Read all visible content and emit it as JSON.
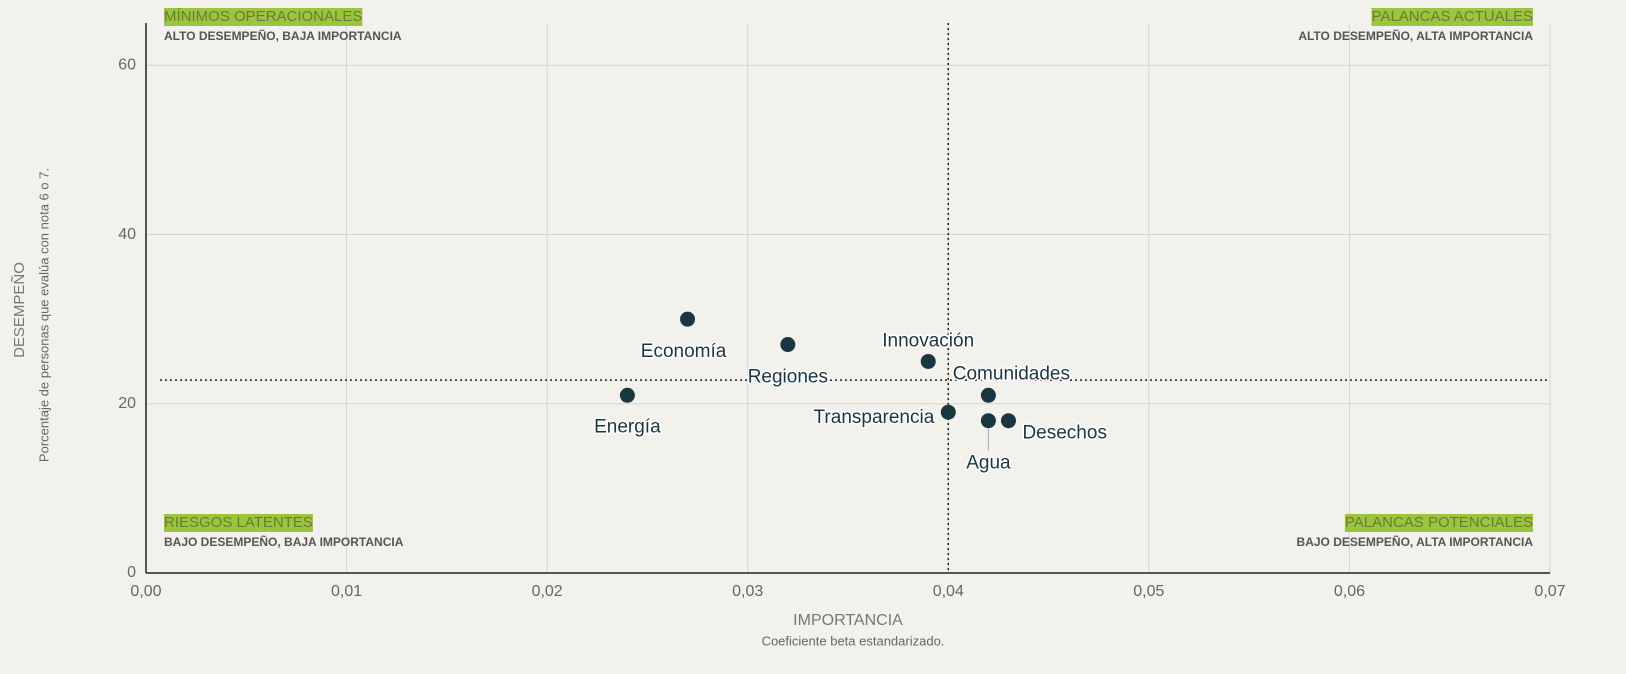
{
  "chart_data": {
    "type": "scatter",
    "x_label": "IMPORTANCIA",
    "x_sublabel": "Coeficiente beta estandarizado.",
    "y_label": "DESEMPEÑO",
    "y_sublabel": "Porcentaje de personas que evalúa con nota 6 o 7.",
    "labels": [
      "Economía",
      "Regiones",
      "Innovación",
      "Energía",
      "Comunidades",
      "Transparencia",
      "Agua",
      "Desechos"
    ],
    "x": [
      0.027,
      0.032,
      0.039,
      0.024,
      0.042,
      0.04,
      0.042,
      0.043
    ],
    "values": [
      30,
      27,
      25,
      21,
      21,
      19,
      18,
      18
    ],
    "color": "#1a3640",
    "xlim": [
      0,
      0.07
    ],
    "ylim": [
      0,
      65
    ],
    "xticks": [
      {
        "value": 0,
        "label": "0,00"
      },
      {
        "value": 0.01,
        "label": "0,01"
      },
      {
        "value": 0.02,
        "label": "0,02"
      },
      {
        "value": 0.03,
        "label": "0,03"
      },
      {
        "value": 0.04,
        "label": "0,04"
      },
      {
        "value": 0.05,
        "label": "0,05"
      },
      {
        "value": 0.06,
        "label": "0,06"
      },
      {
        "value": 0.07,
        "label": "0,07"
      }
    ],
    "yticks": [
      0,
      20,
      40,
      60
    ],
    "grid": true,
    "x_ref": 0.04,
    "y_ref": 22.8,
    "quadrants": [
      {
        "corner": "top-left",
        "title": "MÍNIMOS OPERACIONALES",
        "subtitle": "ALTO DESEMPEÑO, BAJA IMPORTANCIA"
      },
      {
        "corner": "top-right",
        "title": "PALANCAS ACTUALES",
        "subtitle": "ALTO DESEMPEÑO, ALTA IMPORTANCIA"
      },
      {
        "corner": "bottom-left",
        "title": "RIESGOS LATENTES",
        "subtitle": "BAJO DESEMPEÑO, BAJA IMPORTANCIA"
      },
      {
        "corner": "bottom-right",
        "title": "PALANCAS POTENCIALES",
        "subtitle": "BAJO DESEMPEÑO, ALTA IMPORTANCIA"
      }
    ],
    "highlight_color": "#9bc53d"
  }
}
